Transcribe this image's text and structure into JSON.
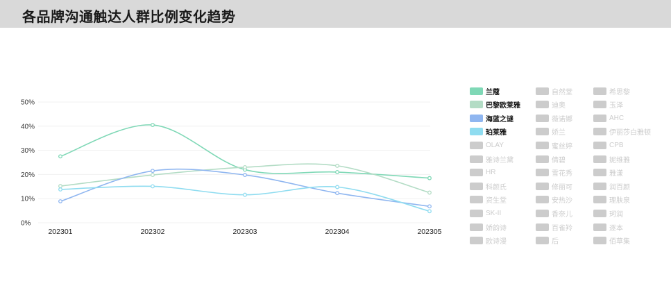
{
  "header": {
    "title": "各品牌沟通触达人群比例变化趋势"
  },
  "chart_data": {
    "type": "line",
    "title": "各品牌沟通触达人群比例变化趋势",
    "categories": [
      "202301",
      "202302",
      "202303",
      "202304",
      "202305"
    ],
    "yticks": [
      "0%",
      "10%",
      "20%",
      "30%",
      "40%",
      "50%"
    ],
    "ylim": [
      0,
      50
    ],
    "smooth": true,
    "grid": true,
    "legend_position": "right",
    "series": [
      {
        "name": "兰蔻",
        "color": "#7fd8b6",
        "values": [
          27.5,
          40.5,
          22.0,
          21.0,
          18.5
        ]
      },
      {
        "name": "巴黎欧莱雅",
        "color": "#b3dcc5",
        "values": [
          15.2,
          19.8,
          23.0,
          23.6,
          12.5
        ]
      },
      {
        "name": "海蓝之谜",
        "color": "#8fb6f0",
        "values": [
          8.9,
          21.5,
          19.8,
          12.3,
          6.8
        ]
      },
      {
        "name": "珀莱雅",
        "color": "#8fdcf0",
        "values": [
          13.8,
          15.1,
          11.6,
          14.8,
          4.8
        ]
      }
    ],
    "legend": [
      "兰蔻",
      "自然堂",
      "希思黎",
      "巴黎欧莱雅",
      "迪奥",
      "玉泽",
      "海蓝之谜",
      "薇诺娜",
      "AHC",
      "珀莱雅",
      "娇兰",
      "伊丽莎白雅顿",
      "OLAY",
      "蜜丝婷",
      "CPB",
      "雅诗兰黛",
      "倩碧",
      "妮维雅",
      "HR",
      "雪花秀",
      "雅漾",
      "科颜氏",
      "修丽可",
      "润百颜",
      "资生堂",
      "安热沙",
      "理肤泉",
      "SK-II",
      "香奈儿",
      "珂润",
      "娇韵诗",
      "百雀羚",
      "逐本",
      "欧诗漫",
      "后",
      "佰草集"
    ],
    "legend_inactive_color": "#cccccc"
  }
}
